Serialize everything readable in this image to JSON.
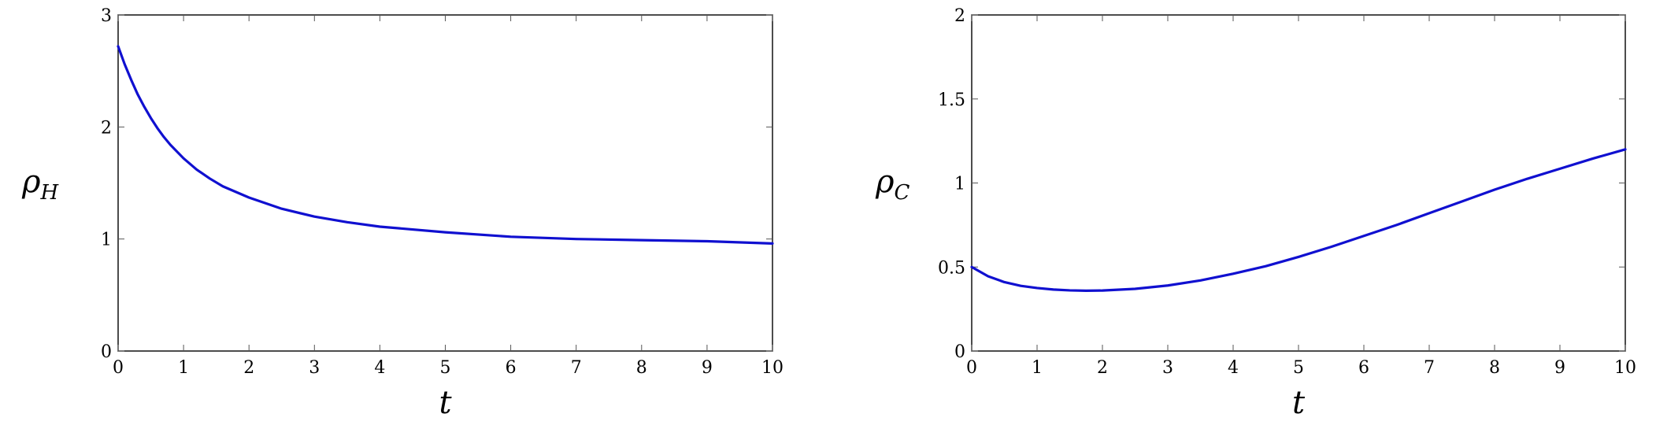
{
  "colors": {
    "series": "#1010d0"
  },
  "chart_data": [
    {
      "type": "line",
      "xlabel": "t",
      "ylabel": {
        "main": "ρ",
        "sub": "H"
      },
      "xlim": [
        0,
        10
      ],
      "ylim": [
        0,
        3
      ],
      "xticks": [
        "0",
        "1",
        "2",
        "3",
        "4",
        "5",
        "6",
        "7",
        "8",
        "9",
        "10"
      ],
      "xtick_values": [
        0,
        1,
        2,
        3,
        4,
        5,
        6,
        7,
        8,
        9,
        10
      ],
      "yticks": [
        "0",
        "1",
        "2",
        "3"
      ],
      "ytick_values": [
        0,
        1,
        2,
        3
      ],
      "grid": false,
      "series": [
        {
          "x": [
            0,
            0.1,
            0.2,
            0.3,
            0.4,
            0.5,
            0.6,
            0.7,
            0.8,
            1.0,
            1.2,
            1.4,
            1.6,
            1.8,
            2.0,
            2.5,
            3.0,
            3.5,
            4.0,
            5.0,
            6.0,
            7.0,
            8.0,
            9.0,
            10.0
          ],
          "y": [
            2.72,
            2.56,
            2.42,
            2.29,
            2.18,
            2.08,
            1.99,
            1.91,
            1.84,
            1.72,
            1.62,
            1.54,
            1.47,
            1.42,
            1.37,
            1.27,
            1.2,
            1.15,
            1.11,
            1.06,
            1.02,
            1.0,
            0.99,
            0.98,
            0.96
          ]
        }
      ]
    },
    {
      "type": "line",
      "xlabel": "t",
      "ylabel": {
        "main": "ρ",
        "sub": "C"
      },
      "xlim": [
        0,
        10
      ],
      "ylim": [
        0,
        2
      ],
      "xticks": [
        "0",
        "1",
        "2",
        "3",
        "4",
        "5",
        "6",
        "7",
        "8",
        "9",
        "10"
      ],
      "xtick_values": [
        0,
        1,
        2,
        3,
        4,
        5,
        6,
        7,
        8,
        9,
        10
      ],
      "yticks": [
        "0",
        "0.5",
        "1",
        "1.5",
        "2"
      ],
      "ytick_values": [
        0,
        0.5,
        1,
        1.5,
        2
      ],
      "grid": false,
      "series": [
        {
          "x": [
            0,
            0.25,
            0.5,
            0.75,
            1.0,
            1.25,
            1.5,
            1.75,
            2.0,
            2.5,
            3.0,
            3.5,
            4.0,
            4.5,
            5.0,
            5.5,
            6.0,
            6.5,
            7.0,
            7.5,
            8.0,
            8.5,
            9.0,
            9.5,
            10.0
          ],
          "y": [
            0.5,
            0.445,
            0.41,
            0.388,
            0.375,
            0.366,
            0.361,
            0.359,
            0.36,
            0.37,
            0.39,
            0.42,
            0.46,
            0.505,
            0.56,
            0.62,
            0.685,
            0.75,
            0.82,
            0.89,
            0.96,
            1.025,
            1.085,
            1.145,
            1.2
          ]
        }
      ]
    }
  ]
}
